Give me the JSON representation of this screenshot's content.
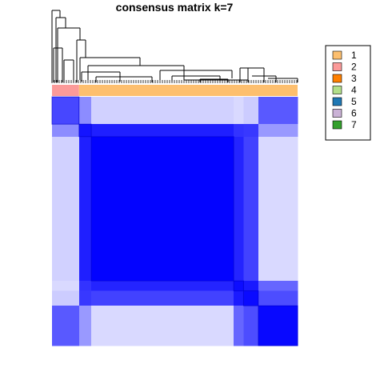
{
  "chart_data": {
    "type": "heatmap",
    "title": "consensus matrix k=7",
    "color_scale": {
      "low": "#ffffff",
      "high": "#0000ff",
      "range": [
        0,
        1
      ]
    },
    "class_annotation": {
      "segments": [
        {
          "class": "2",
          "fraction": 0.11
        },
        {
          "class": "1",
          "fraction": 0.89
        }
      ]
    },
    "consensus_blocks": {
      "order": [
        "A",
        "B",
        "C",
        "D",
        "E",
        "F"
      ],
      "fractions": [
        0.11,
        0.05,
        0.58,
        0.04,
        0.06,
        0.16
      ],
      "matrix": [
        [
          0.72,
          0.45,
          0.18,
          0.15,
          0.2,
          0.65
        ],
        [
          0.45,
          0.92,
          0.88,
          0.8,
          0.78,
          0.4
        ],
        [
          0.18,
          0.88,
          0.99,
          0.86,
          0.74,
          0.15
        ],
        [
          0.15,
          0.8,
          0.86,
          0.95,
          0.9,
          0.6
        ],
        [
          0.2,
          0.78,
          0.74,
          0.9,
          0.96,
          0.7
        ],
        [
          0.65,
          0.4,
          0.15,
          0.6,
          0.7,
          0.97
        ]
      ]
    },
    "legend": {
      "position": "right",
      "entries": [
        {
          "label": "1",
          "color": "#FDBF6F"
        },
        {
          "label": "2",
          "color": "#FB9A99"
        },
        {
          "label": "3",
          "color": "#FF7F00"
        },
        {
          "label": "4",
          "color": "#B2DF8A"
        },
        {
          "label": "5",
          "color": "#1F78B4"
        },
        {
          "label": "6",
          "color": "#CAB2D6"
        },
        {
          "label": "7",
          "color": "#33A02C"
        }
      ]
    }
  }
}
